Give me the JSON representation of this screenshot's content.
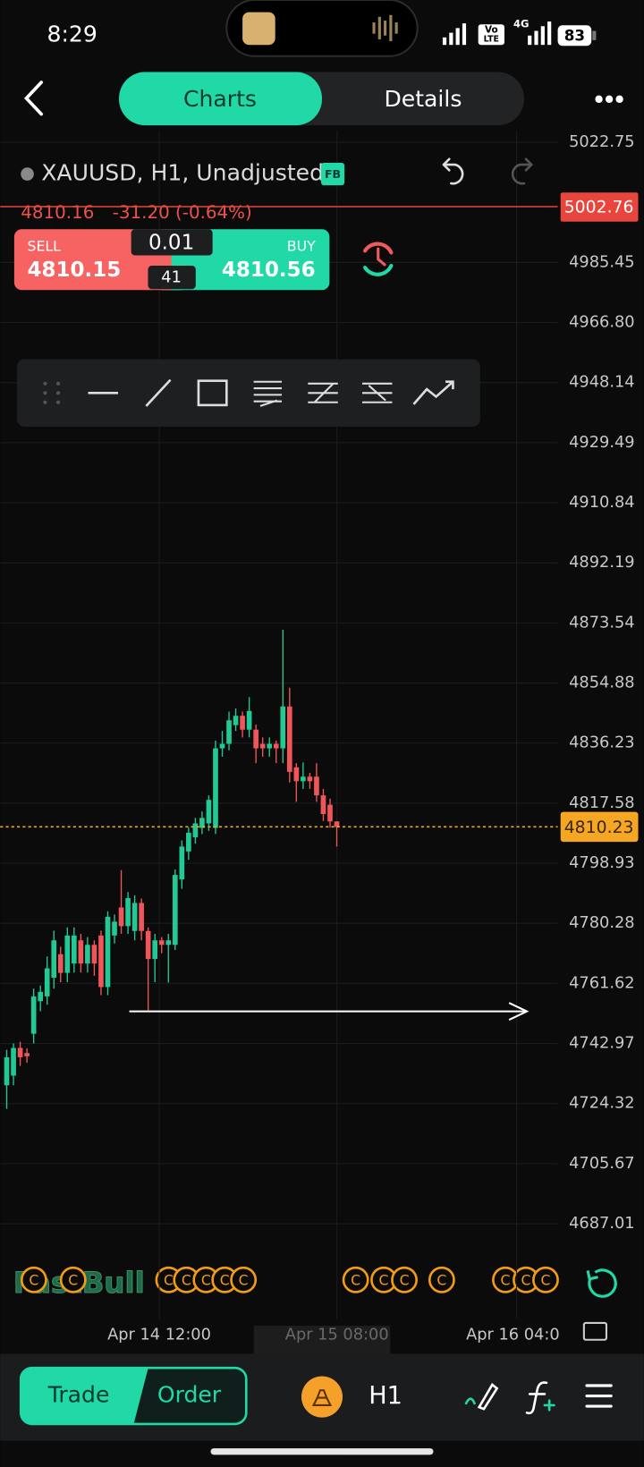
{
  "status_bar": {
    "time": "8:29",
    "volte_top": "Vo",
    "volte_bottom": "LTE",
    "network": "4G",
    "battery": "83"
  },
  "tabs": [
    "Charts",
    "Details"
  ],
  "symbol": {
    "name": "XAUUSD, H1, Unadjusted",
    "badge": "FB",
    "last": "4810.16",
    "change": "-31.20 (-0.64%)"
  },
  "trade_panel": {
    "sell_label": "SELL",
    "sell_price": "4810.15",
    "lot": "0.01",
    "spread": "41",
    "buy_label": "BUY",
    "buy_price": "4810.56"
  },
  "chart": {
    "type": "candlestick",
    "watermark": "FastBull",
    "event_marker": "C",
    "ylim": [
      4680.63,
      5026.24
    ],
    "yticks": [
      5022.75,
      4985.45,
      {
        "value": 4966.8,
        "label": "4966.80"
      },
      4948.14,
      4929.49,
      4910.84,
      4892.19,
      4873.54,
      4854.88,
      4836.23,
      4817.58,
      4798.93,
      4780.28,
      4761.62,
      4742.97,
      4724.32,
      4705.67,
      4687.01
    ],
    "x_labels": [
      "Apr 14 12:00",
      "Apr 15 08:00",
      "Apr 16 04:0"
    ],
    "high_line": 5002.76,
    "last_price": 4810.23,
    "up_color": "#22c995",
    "down_color": "#f0555a",
    "candles": [
      {
        "o": 4730.0,
        "h": 4741.0,
        "l": 4722.7,
        "c": 4738.7
      },
      {
        "o": 4733.0,
        "h": 4743.0,
        "l": 4730.0,
        "c": 4741.6
      },
      {
        "o": 4741.6,
        "h": 4743.5,
        "l": 4736.0,
        "c": 4738.7
      },
      {
        "o": 4740.0,
        "h": 4741.5,
        "l": 4737.0,
        "c": 4739.0
      },
      {
        "o": 4746.0,
        "h": 4760.0,
        "l": 4743.0,
        "c": 4757.6
      },
      {
        "o": 4756.1,
        "h": 4761.0,
        "l": 4753.0,
        "c": 4759.0
      },
      {
        "o": 4757.6,
        "h": 4770.0,
        "l": 4755.0,
        "c": 4766.3
      },
      {
        "o": 4763.4,
        "h": 4778.0,
        "l": 4760.0,
        "c": 4775.0
      },
      {
        "o": 4770.7,
        "h": 4773.0,
        "l": 4762.0,
        "c": 4764.9
      },
      {
        "o": 4764.9,
        "h": 4779.0,
        "l": 4762.0,
        "c": 4776.5
      },
      {
        "o": 4767.8,
        "h": 4779.0,
        "l": 4765.0,
        "c": 4776.5
      },
      {
        "o": 4775.0,
        "h": 4777.0,
        "l": 4765.0,
        "c": 4767.8
      },
      {
        "o": 4767.8,
        "h": 4776.0,
        "l": 4765.0,
        "c": 4773.6
      },
      {
        "o": 4773.6,
        "h": 4775.0,
        "l": 4764.0,
        "c": 4767.8
      },
      {
        "o": 4776.5,
        "h": 4778.0,
        "l": 4758.0,
        "c": 4760.5
      },
      {
        "o": 4760.5,
        "h": 4784.0,
        "l": 4758.0,
        "c": 4782.3
      },
      {
        "o": 4776.5,
        "h": 4783.0,
        "l": 4774.0,
        "c": 4780.8
      },
      {
        "o": 4785.2,
        "h": 4796.8,
        "l": 4777.0,
        "c": 4779.4
      },
      {
        "o": 4779.4,
        "h": 4790.0,
        "l": 4777.0,
        "c": 4788.1
      },
      {
        "o": 4777.9,
        "h": 4789.0,
        "l": 4775.0,
        "c": 4786.6
      },
      {
        "o": 4786.6,
        "h": 4788.0,
        "l": 4775.0,
        "c": 4777.9
      },
      {
        "o": 4777.9,
        "h": 4779.0,
        "l": 4753.2,
        "c": 4769.2
      },
      {
        "o": 4769.2,
        "h": 4777.0,
        "l": 4762.0,
        "c": 4775.0
      },
      {
        "o": 4775.0,
        "h": 4776.0,
        "l": 4771.0,
        "c": 4773.6
      },
      {
        "o": 4773.6,
        "h": 4777.0,
        "l": 4761.9,
        "c": 4775.0
      },
      {
        "o": 4773.6,
        "h": 4797.0,
        "l": 4772.0,
        "c": 4795.3
      },
      {
        "o": 4793.9,
        "h": 4806.0,
        "l": 4791.0,
        "c": 4804.1
      },
      {
        "o": 4802.6,
        "h": 4810.0,
        "l": 4800.0,
        "c": 4808.4
      },
      {
        "o": 4807.0,
        "h": 4813.0,
        "l": 4805.0,
        "c": 4811.3
      },
      {
        "o": 4809.9,
        "h": 4815.0,
        "l": 4808.0,
        "c": 4813.0
      },
      {
        "o": 4811.3,
        "h": 4820.0,
        "l": 4809.0,
        "c": 4818.6
      },
      {
        "o": 4809.9,
        "h": 4837.0,
        "l": 4808.0,
        "c": 4834.6
      },
      {
        "o": 4834.6,
        "h": 4840.0,
        "l": 4832.0,
        "c": 4836.0
      },
      {
        "o": 4836.0,
        "h": 4846.0,
        "l": 4834.0,
        "c": 4843.3
      },
      {
        "o": 4841.8,
        "h": 4847.0,
        "l": 4840.0,
        "c": 4844.7
      },
      {
        "o": 4844.7,
        "h": 4846.0,
        "l": 4838.0,
        "c": 4840.4
      },
      {
        "o": 4840.4,
        "h": 4850.5,
        "l": 4838.0,
        "c": 4846.2
      },
      {
        "o": 4840.4,
        "h": 4842.0,
        "l": 4830.0,
        "c": 4834.6
      },
      {
        "o": 4836.0,
        "h": 4838.0,
        "l": 4832.0,
        "c": 4834.6
      },
      {
        "o": 4834.6,
        "h": 4838.0,
        "l": 4832.0,
        "c": 4836.0
      },
      {
        "o": 4836.0,
        "h": 4837.0,
        "l": 4830.0,
        "c": 4834.6
      },
      {
        "o": 4834.6,
        "h": 4871.4,
        "l": 4830.0,
        "c": 4847.6
      },
      {
        "o": 4847.6,
        "h": 4853.4,
        "l": 4824.0,
        "c": 4827.3
      },
      {
        "o": 4828.7,
        "h": 4830.0,
        "l": 4818.0,
        "c": 4824.4
      },
      {
        "o": 4824.4,
        "h": 4830.2,
        "l": 4822.0,
        "c": 4825.8
      },
      {
        "o": 4825.8,
        "h": 4827.0,
        "l": 4822.0,
        "c": 4824.4
      },
      {
        "o": 4825.8,
        "h": 4830.0,
        "l": 4818.0,
        "c": 4820.0
      },
      {
        "o": 4820.0,
        "h": 4822.0,
        "l": 4812.0,
        "c": 4814.2
      },
      {
        "o": 4817.1,
        "h": 4819.0,
        "l": 4810.0,
        "c": 4811.9
      },
      {
        "o": 4811.9,
        "h": 4812.0,
        "l": 4804.1,
        "c": 4810.2
      }
    ]
  },
  "bottom_bar": {
    "trade": "Trade",
    "order": "Order",
    "timeframe": "H1"
  }
}
